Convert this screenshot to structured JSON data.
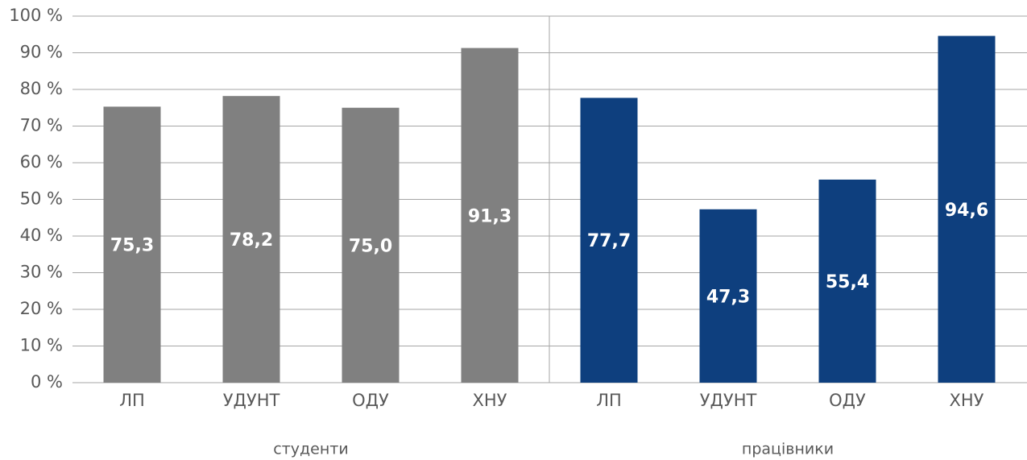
{
  "chart_data": {
    "type": "bar",
    "categories": [
      "ЛП",
      "УДУНТ",
      "ОДУ",
      "ХНУ"
    ],
    "series": [
      {
        "name": "студенти",
        "color": "#808080",
        "values": [
          75.3,
          78.2,
          75.0,
          91.3
        ],
        "value_labels": [
          "75,3",
          "78,2",
          "75,0",
          "91,3"
        ]
      },
      {
        "name": "працівники",
        "color": "#0e3f7e",
        "values": [
          77.7,
          47.3,
          55.4,
          94.6
        ],
        "value_labels": [
          "77,7",
          "47,3",
          "55,4",
          "94,6"
        ]
      }
    ],
    "ylim": [
      0,
      100
    ],
    "yticks": [
      {
        "value": 0,
        "label": "0 %"
      },
      {
        "value": 10,
        "label": "10 %"
      },
      {
        "value": 20,
        "label": "20 %"
      },
      {
        "value": 30,
        "label": "30 %"
      },
      {
        "value": 40,
        "label": "40 %"
      },
      {
        "value": 50,
        "label": "50 %"
      },
      {
        "value": 60,
        "label": "60 %"
      },
      {
        "value": 70,
        "label": "70 %"
      },
      {
        "value": 80,
        "label": "80 %"
      },
      {
        "value": 90,
        "label": "90 %"
      },
      {
        "value": 100,
        "label": "100 %"
      }
    ],
    "grid": true
  }
}
